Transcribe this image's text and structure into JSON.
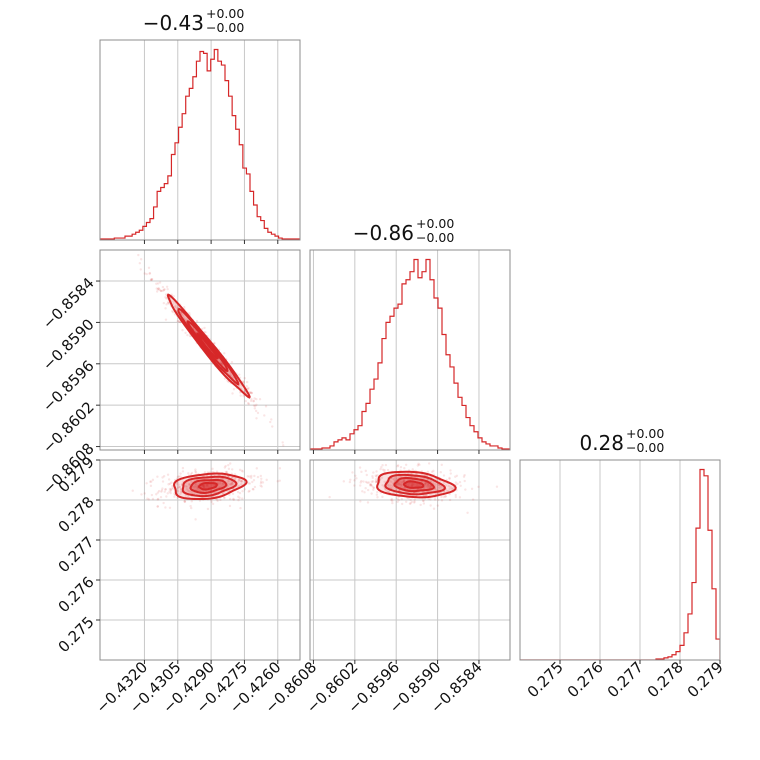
{
  "chart_data": {
    "type": "corner",
    "colors": {
      "main": "#d62728",
      "grid": "#c8c8c8",
      "frame": "#8c8c8c"
    },
    "parameters": [
      {
        "id": "p0",
        "range": [
          -0.434,
          -0.425
        ],
        "ticks": [
          -0.432,
          -0.4305,
          -0.429,
          -0.4275,
          -0.426
        ],
        "tick_labels": [
          "−0.4320",
          "−0.4305",
          "−0.4290",
          "−0.4275",
          "−0.4260"
        ],
        "title_value": "−0.43",
        "title_plus": "+0.00",
        "title_minus": "−0.00"
      },
      {
        "id": "p1",
        "range": [
          -0.86085,
          -0.85795
        ],
        "ticks": [
          -0.8608,
          -0.8602,
          -0.8596,
          -0.859,
          -0.8584
        ],
        "tick_labels": [
          "−0.8608",
          "−0.8602",
          "−0.8596",
          "−0.8590",
          "−0.8584"
        ],
        "title_value": "−0.86",
        "title_plus": "+0.00",
        "title_minus": "−0.00"
      },
      {
        "id": "p2",
        "range": [
          0.274,
          0.279
        ],
        "ticks": [
          0.275,
          0.276,
          0.277,
          0.278,
          0.279
        ],
        "tick_labels": [
          "0.275",
          "0.276",
          "0.277",
          "0.278",
          "0.279"
        ],
        "title_value": "0.28",
        "title_plus": "+0.00",
        "title_minus": "−0.00"
      }
    ],
    "histograms": [
      {
        "param": 0,
        "values": [
          0.5,
          0.5,
          0.5,
          0.5,
          1,
          1,
          1,
          2,
          2,
          3,
          4,
          5,
          7,
          9,
          11,
          17,
          25,
          27,
          29,
          33,
          44,
          50,
          58,
          65,
          74,
          78,
          84,
          92,
          97,
          96,
          87,
          93,
          98,
          92,
          90,
          82,
          74,
          64,
          57,
          49,
          37,
          34,
          25,
          18,
          12,
          10,
          6,
          4,
          3,
          2,
          1,
          0.5,
          0.5,
          0.5,
          0.5,
          0.5
        ]
      },
      {
        "param": 1,
        "values": [
          0.5,
          0.5,
          0.5,
          1,
          1,
          2,
          4,
          5,
          6,
          5,
          8,
          10,
          12,
          19,
          23,
          30,
          35,
          43,
          55,
          63,
          66,
          70,
          72,
          82,
          84,
          88,
          94,
          85,
          88,
          94,
          84,
          75,
          70,
          57,
          47,
          41,
          33,
          26,
          22,
          16,
          12,
          9,
          6,
          4,
          3,
          2,
          2,
          1,
          0.5,
          0.5
        ]
      },
      {
        "param": 2,
        "values": [
          0,
          0,
          0,
          0,
          0,
          0,
          0,
          0,
          0,
          0,
          0,
          0,
          0,
          0,
          0,
          0,
          0,
          0,
          0,
          0,
          0,
          0,
          0,
          0,
          0,
          0,
          0,
          0,
          0,
          0,
          0,
          0,
          0,
          0,
          0.5,
          0.5,
          1,
          1.5,
          2.5,
          4,
          7,
          13,
          22,
          37,
          63,
          91,
          88,
          62,
          34,
          10
        ]
      }
    ],
    "pairs": [
      {
        "x_param": 0,
        "y_param": 1,
        "center": [
          -0.42915,
          -0.85935
        ],
        "sigma_x": 0.0009,
        "sigma_y": 0.00036,
        "correlation": -0.985
      },
      {
        "x_param": 0,
        "y_param": 2,
        "center": [
          -0.42915,
          0.27835
        ],
        "sigma_x": 0.0008,
        "sigma_y": 0.00016,
        "correlation": 0.25
      },
      {
        "x_param": 1,
        "y_param": 2,
        "center": [
          -0.85935,
          0.27838
        ],
        "sigma_x": 0.00028,
        "sigma_y": 0.00016,
        "correlation": -0.2
      }
    ]
  }
}
